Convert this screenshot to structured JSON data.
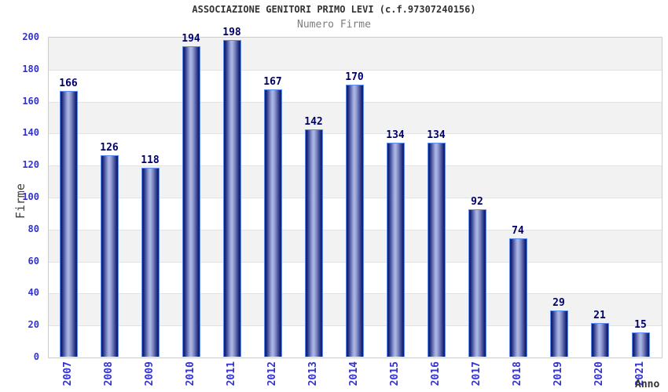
{
  "chart_data": {
    "type": "bar",
    "title": "ASSOCIAZIONE GENITORI PRIMO LEVI (c.f.97307240156)",
    "subtitle": "Numero Firme",
    "xlabel": "Anno",
    "ylabel": "Firme",
    "categories": [
      "2007",
      "2008",
      "2009",
      "2010",
      "2011",
      "2012",
      "2013",
      "2014",
      "2015",
      "2016",
      "2017",
      "2018",
      "2019",
      "2020",
      "2021"
    ],
    "values": [
      166,
      126,
      118,
      194,
      198,
      167,
      142,
      170,
      134,
      134,
      92,
      74,
      29,
      21,
      15
    ],
    "ylim": [
      0,
      200
    ],
    "ytick_step": 20,
    "grid": "horizontal-bands",
    "legend": false,
    "value_labels": true,
    "colors": {
      "bar_edge": "#141d6b",
      "bar_dark": "#1e2878",
      "bar_mid": "#5a68ae",
      "bar_light": "#8691cb",
      "bar_highlight": "#aab2e0",
      "bar_border": "#5e8df2",
      "tick_label": "#3333cc",
      "value_label": "#000066",
      "band": "#f2f2f2",
      "grid_line": "#e2e2e2",
      "plot_border": "#cccccc",
      "title": "#333333",
      "subtitle": "#7d7d7d",
      "axis_title": "#3f3f3f",
      "background": "#ffffff"
    }
  }
}
